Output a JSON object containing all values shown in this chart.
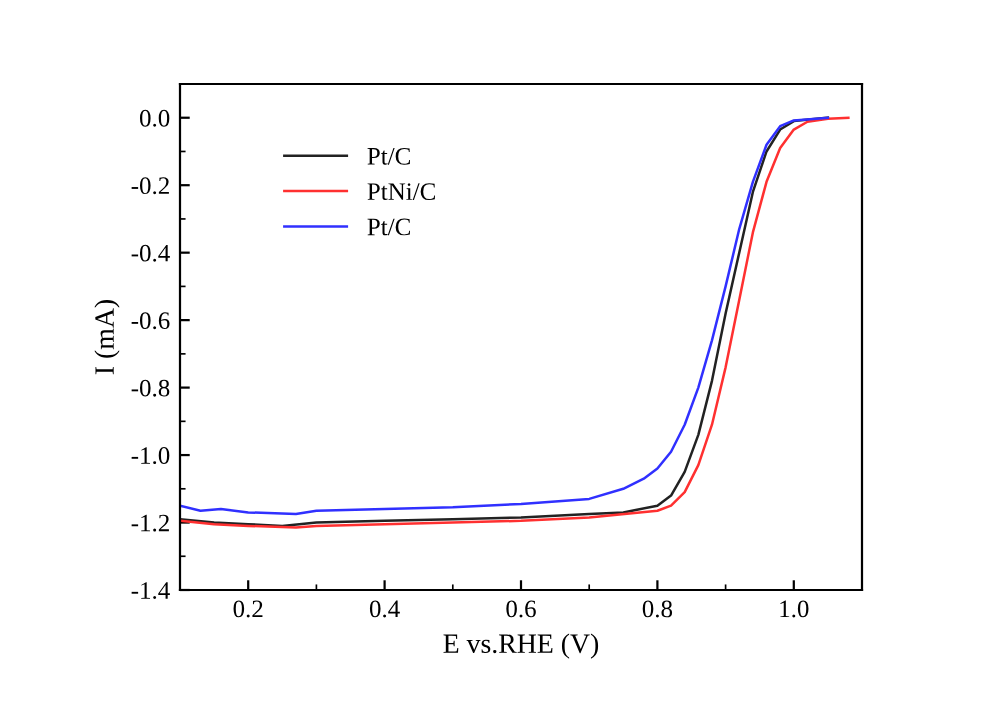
{
  "chart_data": {
    "type": "line",
    "xlabel": "E vs.RHE (V)",
    "ylabel": "I (mA)",
    "xlim": [
      0.1,
      1.1
    ],
    "ylim": [
      -1.4,
      0.1
    ],
    "xticks": [
      0.2,
      0.4,
      0.6,
      0.8,
      {
        "value": 1,
        "label": "1.0"
      }
    ],
    "yticks": [
      -1.4,
      -1.2,
      {
        "value": -1,
        "label": "-1.0"
      },
      -0.8,
      -0.6,
      -0.4,
      -0.2,
      {
        "value": 0,
        "label": "0.0"
      }
    ],
    "legend": "top left",
    "grid": false,
    "marker": "none",
    "line_style": "solid",
    "series": [
      {
        "name": "Pt/C",
        "color": "#222222",
        "x": [
          0.1,
          0.15,
          0.2,
          0.25,
          0.3,
          0.4,
          0.5,
          0.6,
          0.7,
          0.75,
          0.8,
          0.82,
          0.84,
          0.86,
          0.88,
          0.9,
          0.92,
          0.94,
          0.96,
          0.98,
          1.0,
          1.05
        ],
        "values": [
          -1.19,
          -1.2,
          -1.205,
          -1.21,
          -1.2,
          -1.195,
          -1.19,
          -1.185,
          -1.175,
          -1.17,
          -1.15,
          -1.12,
          -1.05,
          -0.94,
          -0.78,
          -0.58,
          -0.4,
          -0.22,
          -0.1,
          -0.035,
          -0.01,
          0.0
        ]
      },
      {
        "name": "PtNi/C",
        "color": "#ff3030",
        "x": [
          0.1,
          0.15,
          0.2,
          0.27,
          0.3,
          0.4,
          0.5,
          0.6,
          0.7,
          0.8,
          0.82,
          0.84,
          0.86,
          0.88,
          0.9,
          0.92,
          0.94,
          0.96,
          0.98,
          1.0,
          1.02,
          1.05,
          1.08
        ],
        "values": [
          -1.195,
          -1.205,
          -1.21,
          -1.215,
          -1.21,
          -1.205,
          -1.2,
          -1.195,
          -1.185,
          -1.165,
          -1.15,
          -1.11,
          -1.03,
          -0.91,
          -0.74,
          -0.54,
          -0.34,
          -0.19,
          -0.09,
          -0.035,
          -0.012,
          -0.003,
          0.0
        ]
      },
      {
        "name": "Pt/C",
        "color": "#3030ff",
        "x": [
          0.1,
          0.13,
          0.16,
          0.2,
          0.27,
          0.3,
          0.4,
          0.5,
          0.6,
          0.7,
          0.75,
          0.78,
          0.8,
          0.82,
          0.84,
          0.86,
          0.88,
          0.9,
          0.92,
          0.94,
          0.96,
          0.98,
          1.0,
          1.05
        ],
        "values": [
          -1.15,
          -1.165,
          -1.16,
          -1.17,
          -1.175,
          -1.165,
          -1.16,
          -1.155,
          -1.145,
          -1.13,
          -1.1,
          -1.07,
          -1.04,
          -0.99,
          -0.91,
          -0.8,
          -0.66,
          -0.5,
          -0.33,
          -0.19,
          -0.08,
          -0.025,
          -0.008,
          0.0
        ]
      }
    ]
  }
}
